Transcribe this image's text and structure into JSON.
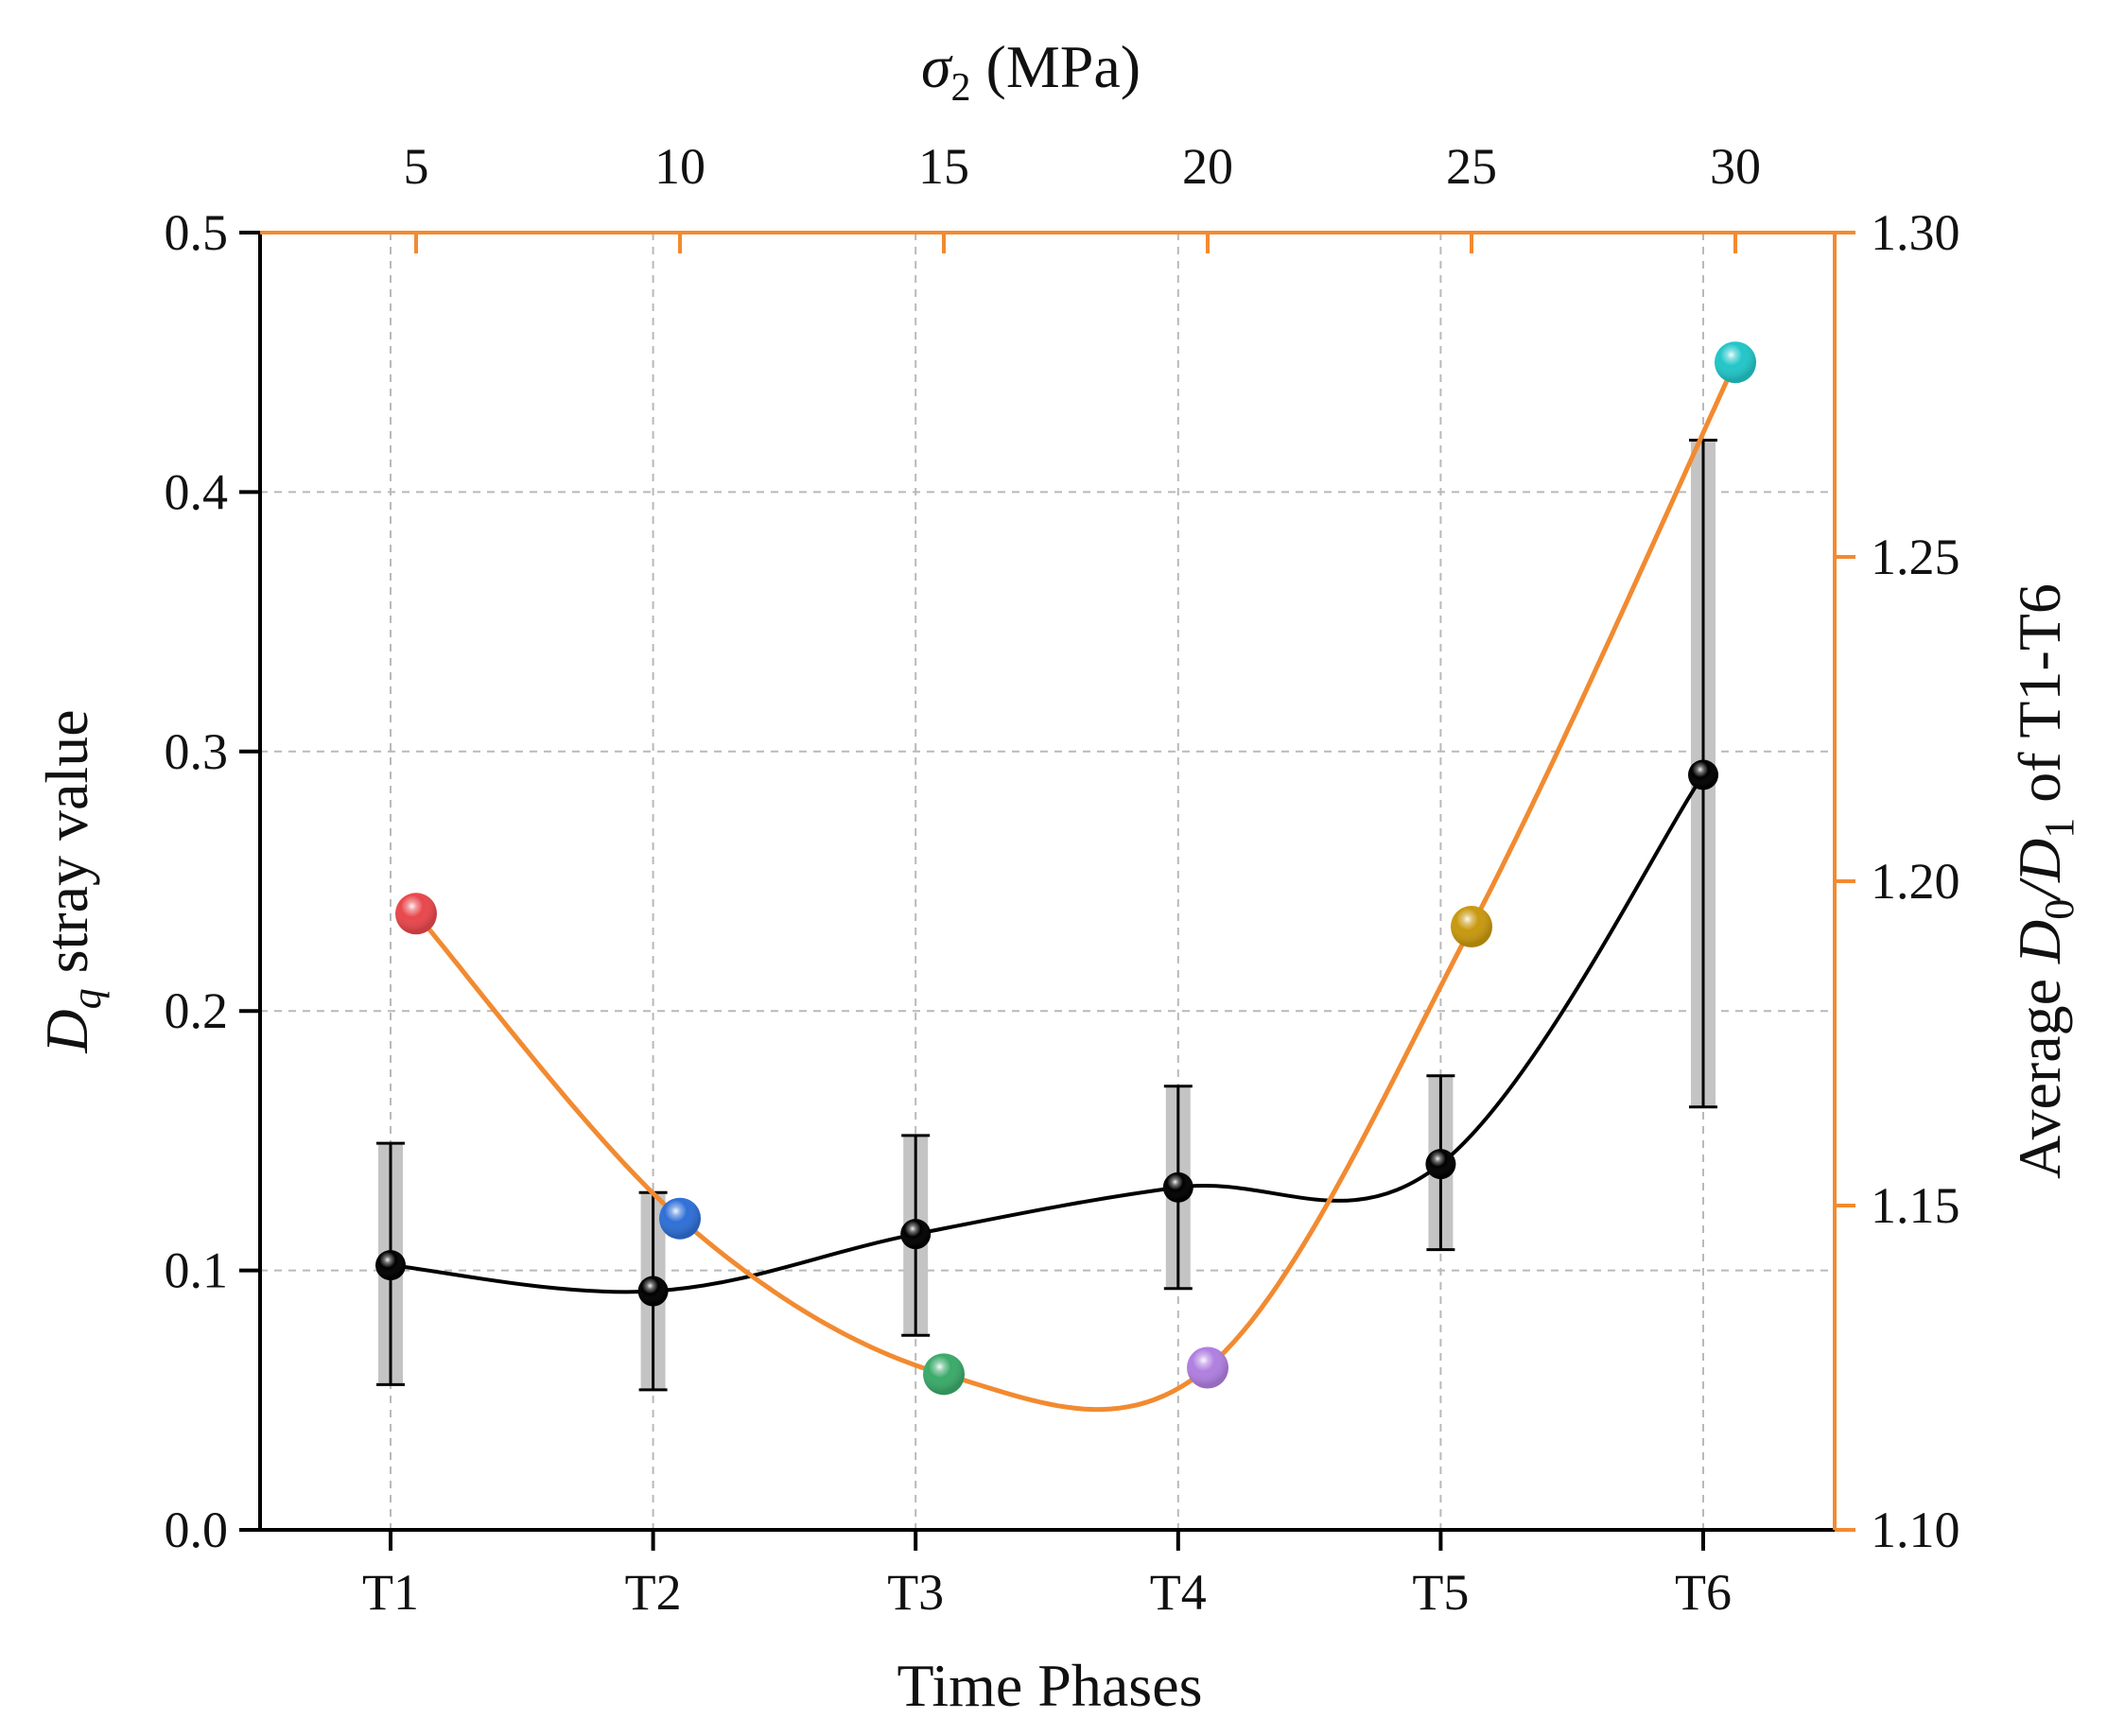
{
  "chart_data": {
    "type": "line",
    "xlabel": "Time Phases",
    "categories": [
      "T1",
      "T2",
      "T3",
      "T4",
      "T5",
      "T6"
    ],
    "ylabel": {
      "prefix": "D",
      "sub": "q",
      "suffix": " stray value"
    },
    "ylim": [
      0,
      0.5
    ],
    "yticks": [
      "0.0",
      "0.1",
      "0.2",
      "0.3",
      "0.4",
      "0.5"
    ],
    "y2label": {
      "p1": "Average ",
      "d0": "D",
      "s0": "0",
      "slash": "/",
      "d1": "D",
      "s1": "1",
      "p2": " of T1-T6"
    },
    "y2lim": [
      1.1,
      1.3
    ],
    "y2ticks": [
      "1.10",
      "1.15",
      "1.20",
      "1.25",
      "1.30"
    ],
    "x2label": {
      "sym": "σ",
      "sub": "2",
      "suffix": " (MPa)"
    },
    "x2ticks": [
      "5",
      "10",
      "15",
      "20",
      "25",
      "30"
    ],
    "grid": true,
    "series": [
      {
        "axis": "left",
        "color": "#000000",
        "values": [
          0.102,
          0.092,
          0.114,
          0.132,
          0.141,
          0.291
        ],
        "err_low": [
          0.056,
          0.054,
          0.075,
          0.093,
          0.108,
          0.163
        ],
        "err_high": [
          0.149,
          0.13,
          0.152,
          0.171,
          0.175,
          0.42
        ]
      },
      {
        "axis": "right",
        "color": "#F28A30",
        "x": [
          5,
          10,
          15,
          20,
          25,
          30
        ],
        "values": [
          1.195,
          1.148,
          1.124,
          1.125,
          1.193,
          1.28
        ],
        "point_colors": [
          "#E8474C",
          "#2F6FD6",
          "#3BAA6A",
          "#B07FE0",
          "#C8980F",
          "#22C6C8"
        ]
      }
    ]
  }
}
